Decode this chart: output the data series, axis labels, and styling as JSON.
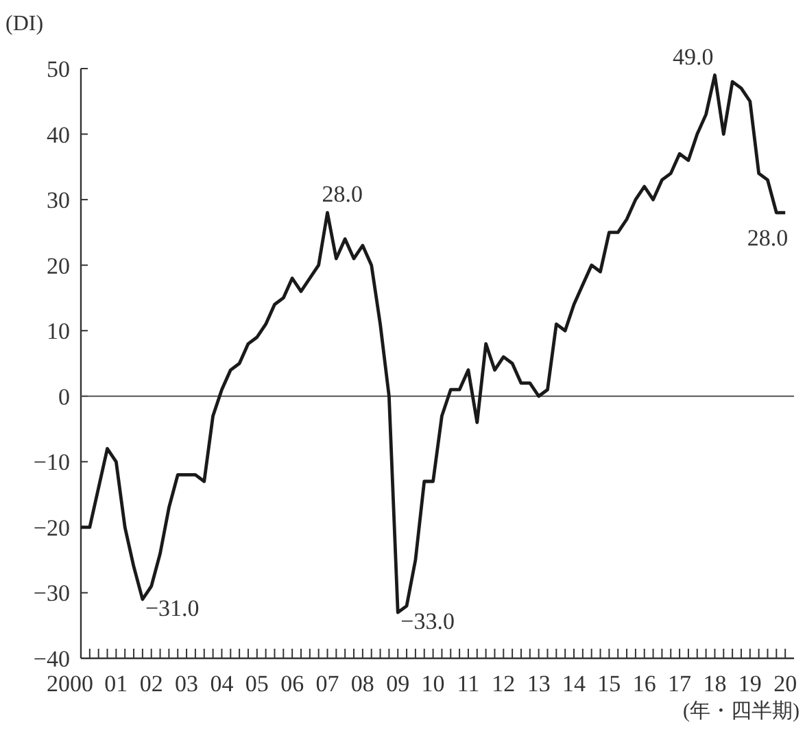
{
  "chart_data": {
    "type": "line",
    "ylabel": "(DI)",
    "xlabel": "(年・四半期)",
    "x": [
      2000,
      2000.25,
      2000.5,
      2000.75,
      2001,
      2001.25,
      2001.5,
      2001.75,
      2002,
      2002.25,
      2002.5,
      2002.75,
      2003,
      2003.25,
      2003.5,
      2003.75,
      2004,
      2004.25,
      2004.5,
      2004.75,
      2005,
      2005.25,
      2005.5,
      2005.75,
      2006,
      2006.25,
      2006.5,
      2006.75,
      2007,
      2007.25,
      2007.5,
      2007.75,
      2008,
      2008.25,
      2008.5,
      2008.75,
      2009,
      2009.25,
      2009.5,
      2009.75,
      2010,
      2010.25,
      2010.5,
      2010.75,
      2011,
      2011.25,
      2011.5,
      2011.75,
      2012,
      2012.25,
      2012.5,
      2012.75,
      2013,
      2013.25,
      2013.5,
      2013.75,
      2014,
      2014.25,
      2014.5,
      2014.75,
      2015,
      2015.25,
      2015.5,
      2015.75,
      2016,
      2016.25,
      2016.5,
      2016.75,
      2017,
      2017.25,
      2017.5,
      2017.75,
      2018,
      2018.25,
      2018.5,
      2018.75,
      2019,
      2019.25,
      2019.5,
      2019.75,
      2020
    ],
    "series": [
      {
        "color": "#1a1a1a",
        "values": [
          -20,
          -20,
          -14,
          -8,
          -10,
          -20,
          -26,
          -31,
          -29,
          -24,
          -17,
          -12,
          -12,
          -12,
          -13,
          -3,
          1,
          4,
          5,
          8,
          9,
          11,
          14,
          15,
          18,
          16,
          18,
          20,
          28,
          21,
          24,
          21,
          23,
          20,
          11,
          0,
          -33,
          -32,
          -25,
          -13,
          -13,
          -3,
          1,
          1,
          4,
          -4,
          8,
          4,
          6,
          5,
          2,
          2,
          0,
          1,
          11,
          10,
          14,
          17,
          20,
          19,
          25,
          25,
          27,
          30,
          32,
          30,
          33,
          34,
          37,
          36,
          40,
          43,
          49,
          40,
          48,
          47,
          45,
          34,
          33,
          28,
          28
        ]
      }
    ],
    "xlim": [
      2000,
      2020.25
    ],
    "ylim": [
      -40,
      50
    ],
    "xticks": [
      {
        "value": 2000,
        "label": "2000"
      },
      {
        "value": 2001,
        "label": "01"
      },
      {
        "value": 2002,
        "label": "02"
      },
      {
        "value": 2003,
        "label": "03"
      },
      {
        "value": 2004,
        "label": "04"
      },
      {
        "value": 2005,
        "label": "05"
      },
      {
        "value": 2006,
        "label": "06"
      },
      {
        "value": 2007,
        "label": "07"
      },
      {
        "value": 2008,
        "label": "08"
      },
      {
        "value": 2009,
        "label": "09"
      },
      {
        "value": 2010,
        "label": "10"
      },
      {
        "value": 2011,
        "label": "11"
      },
      {
        "value": 2012,
        "label": "12"
      },
      {
        "value": 2013,
        "label": "13"
      },
      {
        "value": 2014,
        "label": "14"
      },
      {
        "value": 2015,
        "label": "15"
      },
      {
        "value": 2016,
        "label": "16"
      },
      {
        "value": 2017,
        "label": "17"
      },
      {
        "value": 2018,
        "label": "18"
      },
      {
        "value": 2019,
        "label": "19"
      },
      {
        "value": 2020,
        "label": "20"
      }
    ],
    "yticks": [
      {
        "value": -40,
        "label": "−40"
      },
      {
        "value": -30,
        "label": "−30"
      },
      {
        "value": -20,
        "label": "−20"
      },
      {
        "value": -10,
        "label": "−10"
      },
      0,
      10,
      20,
      30,
      40,
      50
    ],
    "ref_lines": [
      {
        "axis": "y",
        "value": 0,
        "color": "#555555"
      }
    ],
    "annotations": [
      {
        "text": "−31.0",
        "x": 2001.75,
        "y": -31
      },
      {
        "text": "28.0",
        "x": 2007,
        "y": 28
      },
      {
        "text": "−33.0",
        "x": 2009,
        "y": -33
      },
      {
        "text": "49.0",
        "x": 2018,
        "y": 49
      },
      {
        "text": "28.0",
        "x": 2020,
        "y": 28
      }
    ],
    "grid": false,
    "marker": "none",
    "line_style": "solid"
  }
}
